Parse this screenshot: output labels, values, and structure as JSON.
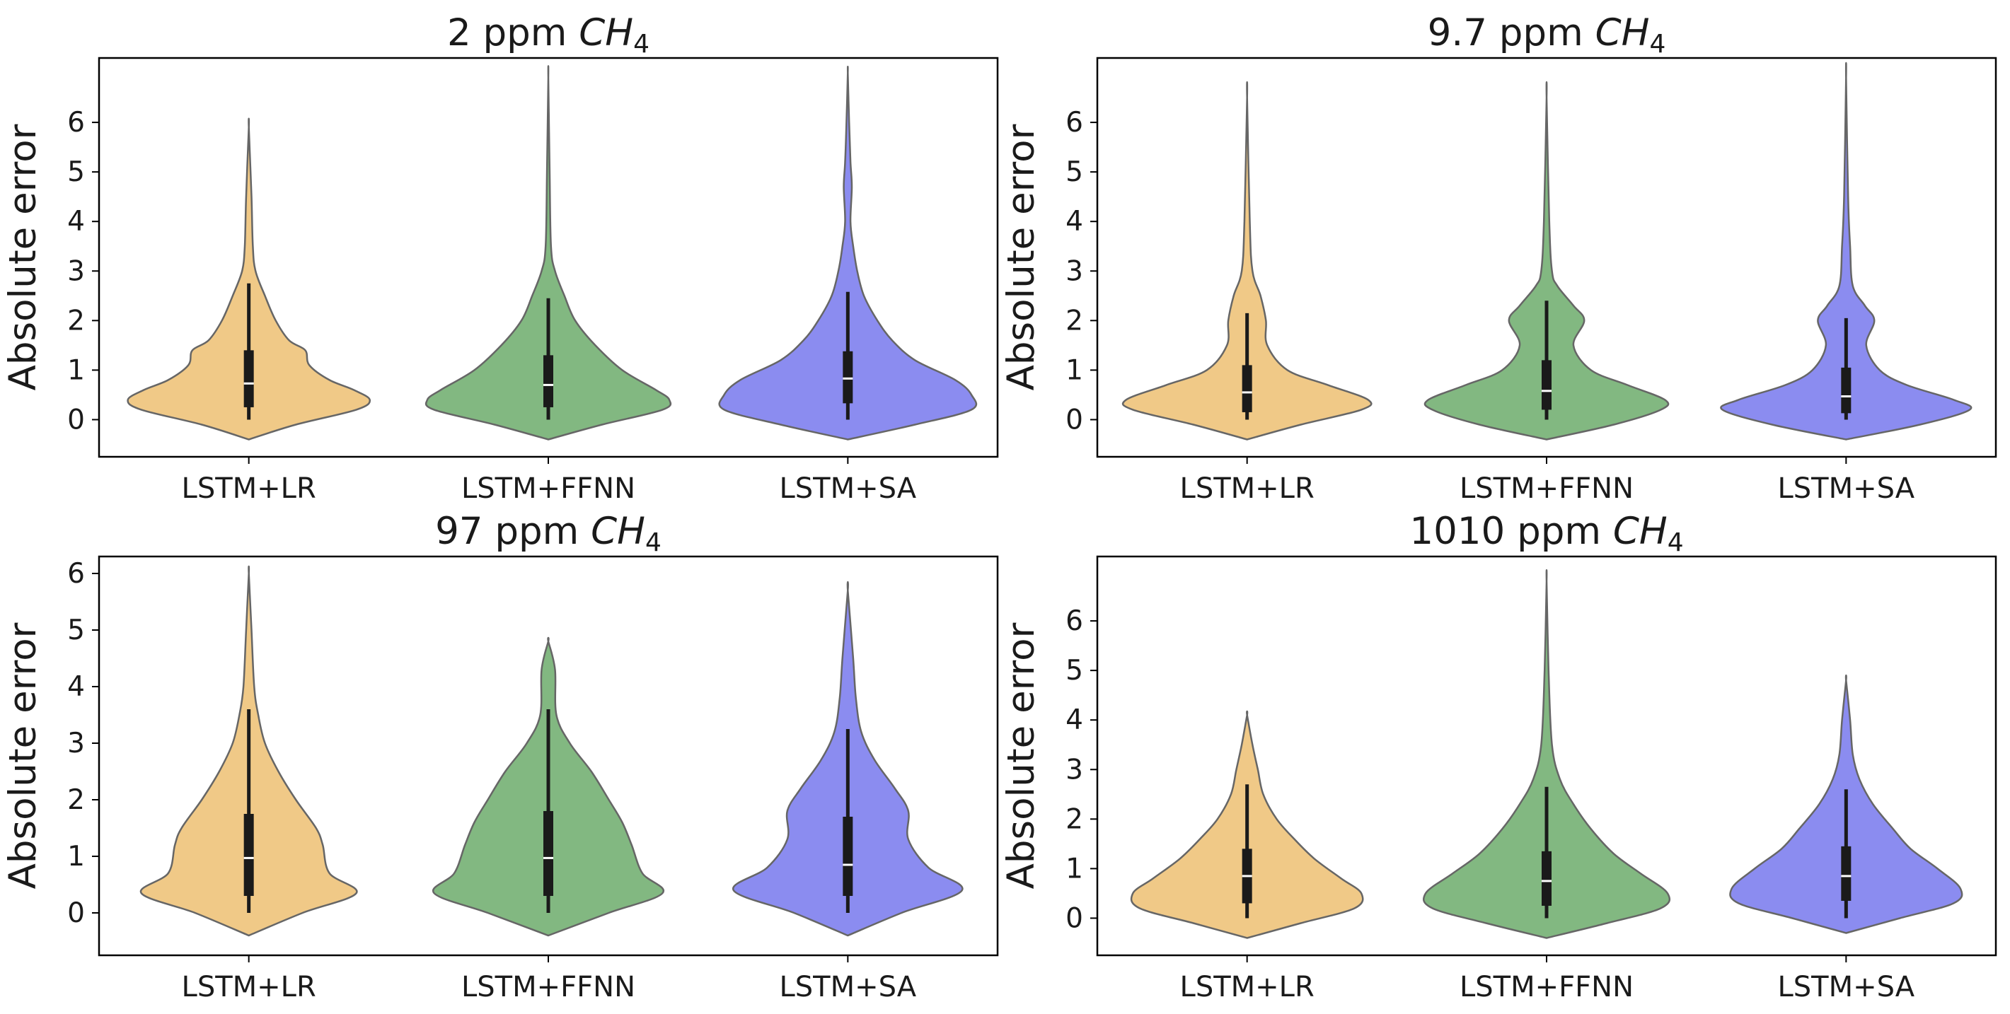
{
  "colors": {
    "LSTM+LR": "#f0c987",
    "LSTM+FFNN": "#82b881",
    "LSTM+SA": "#8b8cf0",
    "outline": "#666666",
    "whisker": "#1a1a1a",
    "median": "#ffffff"
  },
  "chart_data": [
    {
      "type": "violin",
      "title_prefix": "2 ppm ",
      "title_species": "CH",
      "title_subscript": "4",
      "ylabel": "Absolute error",
      "ylim": [
        -0.75,
        7.3
      ],
      "yticks": [
        0,
        1,
        2,
        3,
        4,
        5,
        6
      ],
      "categories": [
        "LSTM+LR",
        "LSTM+FFNN",
        "LSTM+SA"
      ],
      "violins": [
        {
          "name": "LSTM+LR",
          "min": -0.4,
          "max": 5.9,
          "whisker_low": 0.0,
          "q1": 0.25,
          "median": 0.73,
          "q3": 1.4,
          "whisker_high": 2.75,
          "profile": [
            [
              -0.4,
              0.0
            ],
            [
              -0.1,
              0.35
            ],
            [
              0.2,
              0.8
            ],
            [
              0.4,
              0.9
            ],
            [
              0.6,
              0.78
            ],
            [
              0.8,
              0.6
            ],
            [
              1.1,
              0.45
            ],
            [
              1.4,
              0.42
            ],
            [
              1.6,
              0.3
            ],
            [
              2.0,
              0.2
            ],
            [
              2.5,
              0.12
            ],
            [
              3.0,
              0.05
            ],
            [
              3.5,
              0.03
            ],
            [
              4.5,
              0.02
            ],
            [
              5.9,
              0.0
            ]
          ]
        },
        {
          "name": "LSTM+FFNN",
          "min": -0.4,
          "max": 6.9,
          "whisker_low": 0.0,
          "q1": 0.25,
          "median": 0.7,
          "q3": 1.3,
          "whisker_high": 2.45,
          "profile": [
            [
              -0.4,
              0.0
            ],
            [
              -0.1,
              0.4
            ],
            [
              0.2,
              0.85
            ],
            [
              0.4,
              0.9
            ],
            [
              0.6,
              0.8
            ],
            [
              1.0,
              0.55
            ],
            [
              1.5,
              0.35
            ],
            [
              2.0,
              0.2
            ],
            [
              2.5,
              0.12
            ],
            [
              3.0,
              0.05
            ],
            [
              3.5,
              0.02
            ],
            [
              5.0,
              0.01
            ],
            [
              6.9,
              0.0
            ]
          ]
        },
        {
          "name": "LSTM+SA",
          "min": -0.4,
          "max": 7.0,
          "whisker_low": 0.0,
          "q1": 0.33,
          "median": 0.83,
          "q3": 1.38,
          "whisker_high": 2.58,
          "profile": [
            [
              -0.4,
              0.0
            ],
            [
              -0.1,
              0.5
            ],
            [
              0.2,
              0.92
            ],
            [
              0.5,
              0.92
            ],
            [
              0.8,
              0.8
            ],
            [
              1.2,
              0.5
            ],
            [
              1.6,
              0.33
            ],
            [
              2.0,
              0.22
            ],
            [
              2.5,
              0.12
            ],
            [
              3.0,
              0.07
            ],
            [
              3.5,
              0.04
            ],
            [
              4.0,
              0.02
            ],
            [
              4.7,
              0.03
            ],
            [
              5.2,
              0.02
            ],
            [
              6.0,
              0.01
            ],
            [
              7.0,
              0.0
            ]
          ]
        }
      ]
    },
    {
      "type": "violin",
      "title_prefix": "9.7 ppm ",
      "title_species": "CH",
      "title_subscript": "4",
      "ylabel": "Absolute error",
      "ylim": [
        -0.75,
        7.3
      ],
      "yticks": [
        0,
        1,
        2,
        3,
        4,
        5,
        6
      ],
      "categories": [
        "LSTM+LR",
        "LSTM+FFNN",
        "LSTM+SA"
      ],
      "violins": [
        {
          "name": "LSTM+LR",
          "min": -0.4,
          "max": 6.5,
          "whisker_low": 0.0,
          "q1": 0.15,
          "median": 0.55,
          "q3": 1.1,
          "whisker_high": 2.15,
          "profile": [
            [
              -0.4,
              0.0
            ],
            [
              -0.1,
              0.4
            ],
            [
              0.2,
              0.85
            ],
            [
              0.4,
              0.9
            ],
            [
              0.7,
              0.6
            ],
            [
              1.0,
              0.3
            ],
            [
              1.5,
              0.15
            ],
            [
              2.0,
              0.14
            ],
            [
              2.5,
              0.1
            ],
            [
              3.0,
              0.04
            ],
            [
              4.0,
              0.02
            ],
            [
              6.5,
              0.0
            ]
          ]
        },
        {
          "name": "LSTM+FFNN",
          "min": -0.4,
          "max": 6.5,
          "whisker_low": 0.0,
          "q1": 0.2,
          "median": 0.58,
          "q3": 1.2,
          "whisker_high": 2.4,
          "profile": [
            [
              -0.4,
              0.0
            ],
            [
              -0.1,
              0.5
            ],
            [
              0.2,
              0.85
            ],
            [
              0.4,
              0.88
            ],
            [
              0.7,
              0.6
            ],
            [
              1.0,
              0.33
            ],
            [
              1.5,
              0.2
            ],
            [
              2.0,
              0.28
            ],
            [
              2.3,
              0.2
            ],
            [
              2.7,
              0.08
            ],
            [
              3.0,
              0.04
            ],
            [
              4.0,
              0.02
            ],
            [
              6.5,
              0.0
            ]
          ]
        },
        {
          "name": "LSTM+SA",
          "min": -0.4,
          "max": 6.9,
          "whisker_low": 0.0,
          "q1": 0.13,
          "median": 0.47,
          "q3": 1.05,
          "whisker_high": 2.05,
          "profile": [
            [
              -0.4,
              0.0
            ],
            [
              -0.1,
              0.55
            ],
            [
              0.2,
              0.92
            ],
            [
              0.4,
              0.8
            ],
            [
              0.7,
              0.45
            ],
            [
              1.0,
              0.25
            ],
            [
              1.5,
              0.15
            ],
            [
              2.0,
              0.21
            ],
            [
              2.3,
              0.14
            ],
            [
              2.7,
              0.05
            ],
            [
              3.5,
              0.03
            ],
            [
              4.5,
              0.015
            ],
            [
              6.9,
              0.0
            ]
          ]
        }
      ]
    },
    {
      "type": "violin",
      "title_prefix": "97 ppm ",
      "title_species": "CH",
      "title_subscript": "4",
      "ylabel": "Absolute error",
      "ylim": [
        -0.75,
        6.3
      ],
      "yticks": [
        0,
        1,
        2,
        3,
        4,
        5,
        6
      ],
      "categories": [
        "LSTM+LR",
        "LSTM+FFNN",
        "LSTM+SA"
      ],
      "violins": [
        {
          "name": "LSTM+LR",
          "min": -0.4,
          "max": 6.0,
          "whisker_low": 0.0,
          "q1": 0.3,
          "median": 0.97,
          "q3": 1.75,
          "whisker_high": 3.6,
          "profile": [
            [
              -0.4,
              0.0
            ],
            [
              0.0,
              0.4
            ],
            [
              0.35,
              0.8
            ],
            [
              0.7,
              0.6
            ],
            [
              1.2,
              0.55
            ],
            [
              1.5,
              0.5
            ],
            [
              2.0,
              0.35
            ],
            [
              2.5,
              0.22
            ],
            [
              3.0,
              0.12
            ],
            [
              3.5,
              0.07
            ],
            [
              4.0,
              0.04
            ],
            [
              5.0,
              0.02
            ],
            [
              6.0,
              0.0
            ]
          ]
        },
        {
          "name": "LSTM+FFNN",
          "min": -0.4,
          "max": 4.8,
          "whisker_low": 0.0,
          "q1": 0.3,
          "median": 0.97,
          "q3": 1.8,
          "whisker_high": 3.6,
          "profile": [
            [
              -0.4,
              0.0
            ],
            [
              0.0,
              0.45
            ],
            [
              0.35,
              0.85
            ],
            [
              0.7,
              0.7
            ],
            [
              1.2,
              0.62
            ],
            [
              1.6,
              0.55
            ],
            [
              2.0,
              0.45
            ],
            [
              2.5,
              0.32
            ],
            [
              3.0,
              0.16
            ],
            [
              3.5,
              0.06
            ],
            [
              4.3,
              0.05
            ],
            [
              4.8,
              0.0
            ]
          ]
        },
        {
          "name": "LSTM+SA",
          "min": -0.4,
          "max": 5.7,
          "whisker_low": 0.0,
          "q1": 0.3,
          "median": 0.85,
          "q3": 1.7,
          "whisker_high": 3.25,
          "profile": [
            [
              -0.4,
              0.0
            ],
            [
              0.0,
              0.4
            ],
            [
              0.4,
              0.85
            ],
            [
              0.8,
              0.6
            ],
            [
              1.3,
              0.45
            ],
            [
              1.8,
              0.45
            ],
            [
              2.2,
              0.35
            ],
            [
              2.7,
              0.2
            ],
            [
              3.2,
              0.1
            ],
            [
              3.8,
              0.06
            ],
            [
              4.5,
              0.04
            ],
            [
              5.7,
              0.0
            ]
          ]
        }
      ]
    },
    {
      "type": "violin",
      "title_prefix": "1010 ppm ",
      "title_species": "CH",
      "title_subscript": "4",
      "ylabel": "Absolute error",
      "ylim": [
        -0.75,
        7.3
      ],
      "yticks": [
        0,
        1,
        2,
        3,
        4,
        5,
        6
      ],
      "categories": [
        "LSTM+LR",
        "LSTM+FFNN",
        "LSTM+SA"
      ],
      "violins": [
        {
          "name": "LSTM+LR",
          "min": -0.4,
          "max": 4.1,
          "whisker_low": 0.0,
          "q1": 0.3,
          "median": 0.85,
          "q3": 1.4,
          "whisker_high": 2.7,
          "profile": [
            [
              -0.4,
              0.0
            ],
            [
              -0.1,
              0.4
            ],
            [
              0.2,
              0.8
            ],
            [
              0.5,
              0.85
            ],
            [
              0.8,
              0.7
            ],
            [
              1.2,
              0.5
            ],
            [
              1.6,
              0.35
            ],
            [
              2.0,
              0.22
            ],
            [
              2.5,
              0.12
            ],
            [
              3.0,
              0.08
            ],
            [
              3.5,
              0.04
            ],
            [
              4.1,
              0.0
            ]
          ]
        },
        {
          "name": "LSTM+FFNN",
          "min": -0.4,
          "max": 6.8,
          "whisker_low": 0.0,
          "q1": 0.25,
          "median": 0.75,
          "q3": 1.35,
          "whisker_high": 2.65,
          "profile": [
            [
              -0.4,
              0.0
            ],
            [
              -0.1,
              0.45
            ],
            [
              0.2,
              0.85
            ],
            [
              0.5,
              0.9
            ],
            [
              0.9,
              0.7
            ],
            [
              1.3,
              0.5
            ],
            [
              1.8,
              0.33
            ],
            [
              2.3,
              0.2
            ],
            [
              2.8,
              0.1
            ],
            [
              3.5,
              0.04
            ],
            [
              5.0,
              0.015
            ],
            [
              6.8,
              0.0
            ]
          ]
        },
        {
          "name": "LSTM+SA",
          "min": -0.3,
          "max": 4.8,
          "whisker_low": 0.0,
          "q1": 0.35,
          "median": 0.85,
          "q3": 1.45,
          "whisker_high": 2.6,
          "profile": [
            [
              -0.3,
              0.0
            ],
            [
              0.0,
              0.4
            ],
            [
              0.3,
              0.8
            ],
            [
              0.6,
              0.85
            ],
            [
              1.0,
              0.68
            ],
            [
              1.4,
              0.48
            ],
            [
              1.8,
              0.35
            ],
            [
              2.3,
              0.2
            ],
            [
              2.8,
              0.1
            ],
            [
              3.3,
              0.05
            ],
            [
              4.0,
              0.03
            ],
            [
              4.8,
              0.0
            ]
          ]
        }
      ]
    }
  ]
}
